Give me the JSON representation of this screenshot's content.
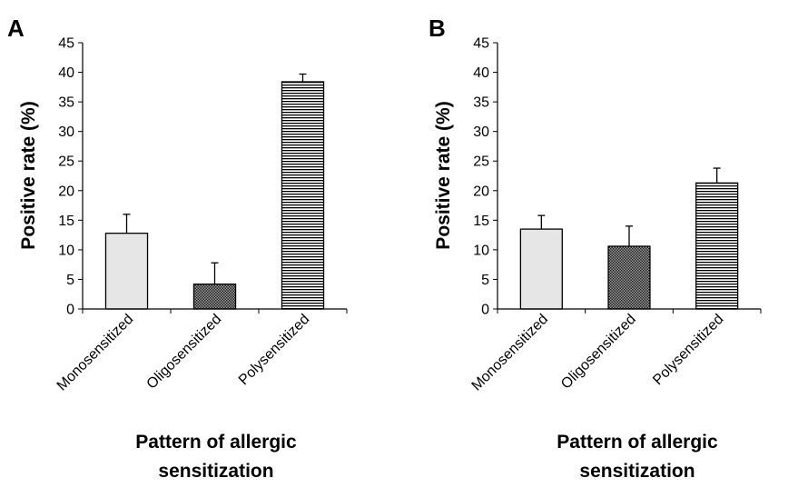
{
  "figure": {
    "panel_letters": [
      "A",
      "B"
    ]
  },
  "chart_data": [
    {
      "panel": "A",
      "type": "bar",
      "categories": [
        "Monosensitized",
        "Oligosensitized",
        "Polysensitized"
      ],
      "values": [
        12.8,
        4.2,
        38.4
      ],
      "error_bars": [
        3.2,
        3.6,
        1.3
      ],
      "fills": [
        "light-gray-solid",
        "dark-crosshatch",
        "horizontal-stripes"
      ],
      "title": "",
      "xlabel": "Pattern of allergic sensitization",
      "ylabel": "Positive rate (%)",
      "ylim": [
        0,
        45
      ],
      "yticks": [
        "0",
        "5",
        "10",
        "15",
        "20",
        "25",
        "30",
        "35",
        "40",
        "45"
      ],
      "grid": false,
      "legend": "none"
    },
    {
      "panel": "B",
      "type": "bar",
      "categories": [
        "Monosensitized",
        "Oligosensitized",
        "Polysensitized"
      ],
      "values": [
        13.5,
        10.6,
        21.3
      ],
      "error_bars": [
        2.3,
        3.4,
        2.5
      ],
      "fills": [
        "light-gray-solid",
        "dark-crosshatch",
        "horizontal-stripes"
      ],
      "title": "",
      "xlabel": "Pattern of allergic sensitization",
      "ylabel": "Positive rate (%)",
      "ylim": [
        0,
        45
      ],
      "yticks": [
        "0",
        "5",
        "10",
        "15",
        "20",
        "25",
        "30",
        "35",
        "40",
        "45"
      ],
      "grid": false,
      "legend": "none"
    }
  ],
  "colors": {
    "light_fill": "#e6e6e6",
    "dark_fill": "#4a4a4a",
    "stripe": "#000000",
    "axis": "#000000"
  }
}
